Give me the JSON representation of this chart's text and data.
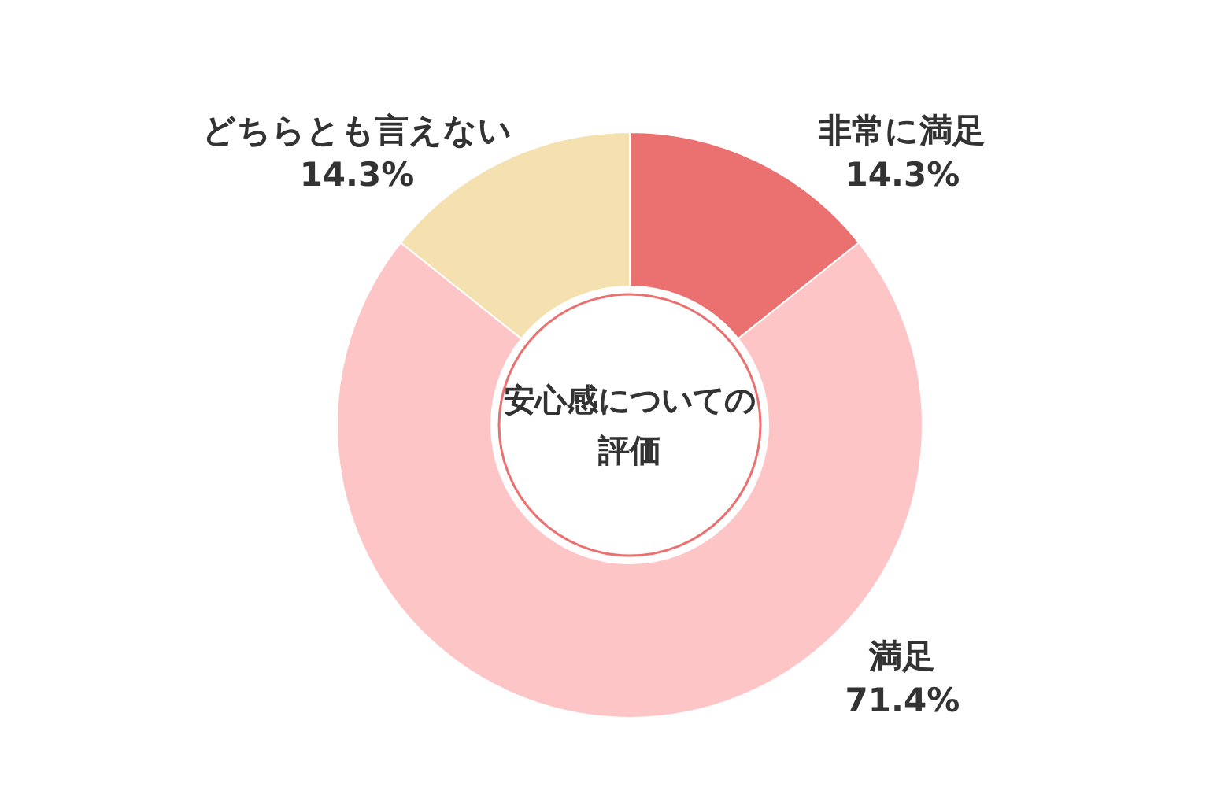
{
  "chart_data": {
    "type": "donut",
    "title": "安心感についての評価",
    "categories": [
      "非常に満足",
      "満足",
      "どちらとも言えない"
    ],
    "values": [
      14.3,
      71.4,
      14.3
    ],
    "value_labels": [
      "14.3%",
      "71.4%",
      "14.3%"
    ],
    "colors": [
      "#eb7070",
      "#fec5c7",
      "#f5e0b0"
    ],
    "legend": false
  }
}
